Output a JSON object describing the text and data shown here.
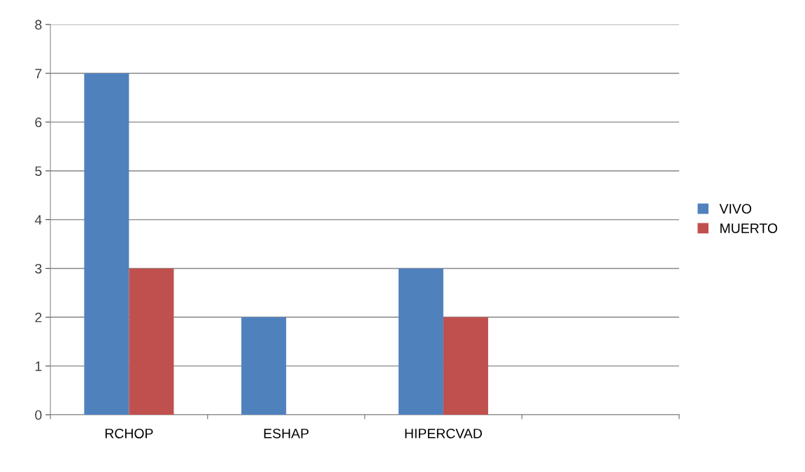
{
  "chart_data": {
    "type": "bar",
    "categories": [
      "RCHOP",
      "ESHAP",
      "HIPERCVAD",
      null
    ],
    "series": [
      {
        "name": "VIVO",
        "color": "#4f81bd",
        "values": [
          7,
          2,
          3,
          null
        ]
      },
      {
        "name": "MUERTO",
        "color": "#c0504d",
        "values": [
          3,
          0,
          2,
          null
        ]
      }
    ],
    "ylim": [
      0,
      8
    ],
    "yticks": [
      0,
      1,
      2,
      3,
      4,
      5,
      6,
      7,
      8
    ],
    "grid": "y",
    "legend": "right"
  }
}
